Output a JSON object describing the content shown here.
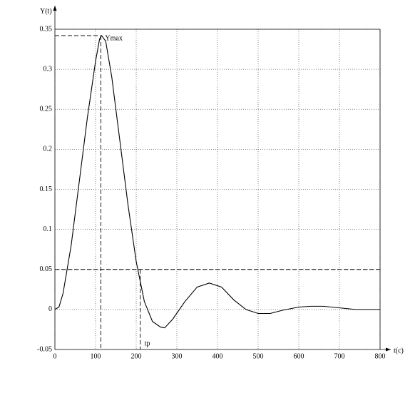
{
  "chart_data": {
    "type": "line",
    "y_label": "Y(t)",
    "x_label": "t(c)",
    "x": [
      0,
      10,
      20,
      40,
      60,
      80,
      90,
      100,
      110,
      115,
      125,
      140,
      160,
      180,
      200,
      220,
      240,
      260,
      270,
      290,
      320,
      350,
      380,
      410,
      440,
      470,
      500,
      530,
      560,
      600,
      630,
      660,
      700,
      740,
      800
    ],
    "series": [
      {
        "color": "#000000",
        "values": [
          0,
          0.003,
          0.02,
          0.08,
          0.16,
          0.24,
          0.275,
          0.31,
          0.338,
          0.342,
          0.335,
          0.29,
          0.21,
          0.13,
          0.06,
          0.01,
          -0.015,
          -0.022,
          -0.023,
          -0.012,
          0.01,
          0.028,
          0.033,
          0.028,
          0.012,
          0.0,
          -0.005,
          -0.005,
          -0.001,
          0.003,
          0.004,
          0.004,
          0.002,
          0.0,
          0
        ]
      }
    ],
    "xlim": [
      0,
      800
    ],
    "ylim": [
      -0.05,
      0.35
    ],
    "xticks": [
      0,
      100,
      200,
      300,
      400,
      500,
      600,
      700,
      800
    ],
    "yticks": [
      -0.05,
      0,
      0.05,
      0.1,
      0.15,
      0.2,
      0.25,
      0.3,
      0.35
    ],
    "grid": true,
    "annotations": [
      {
        "label": "Ymax",
        "x": 113,
        "y": 0.342
      },
      {
        "label": "tp",
        "x": 210,
        "y": 0.05
      }
    ]
  }
}
